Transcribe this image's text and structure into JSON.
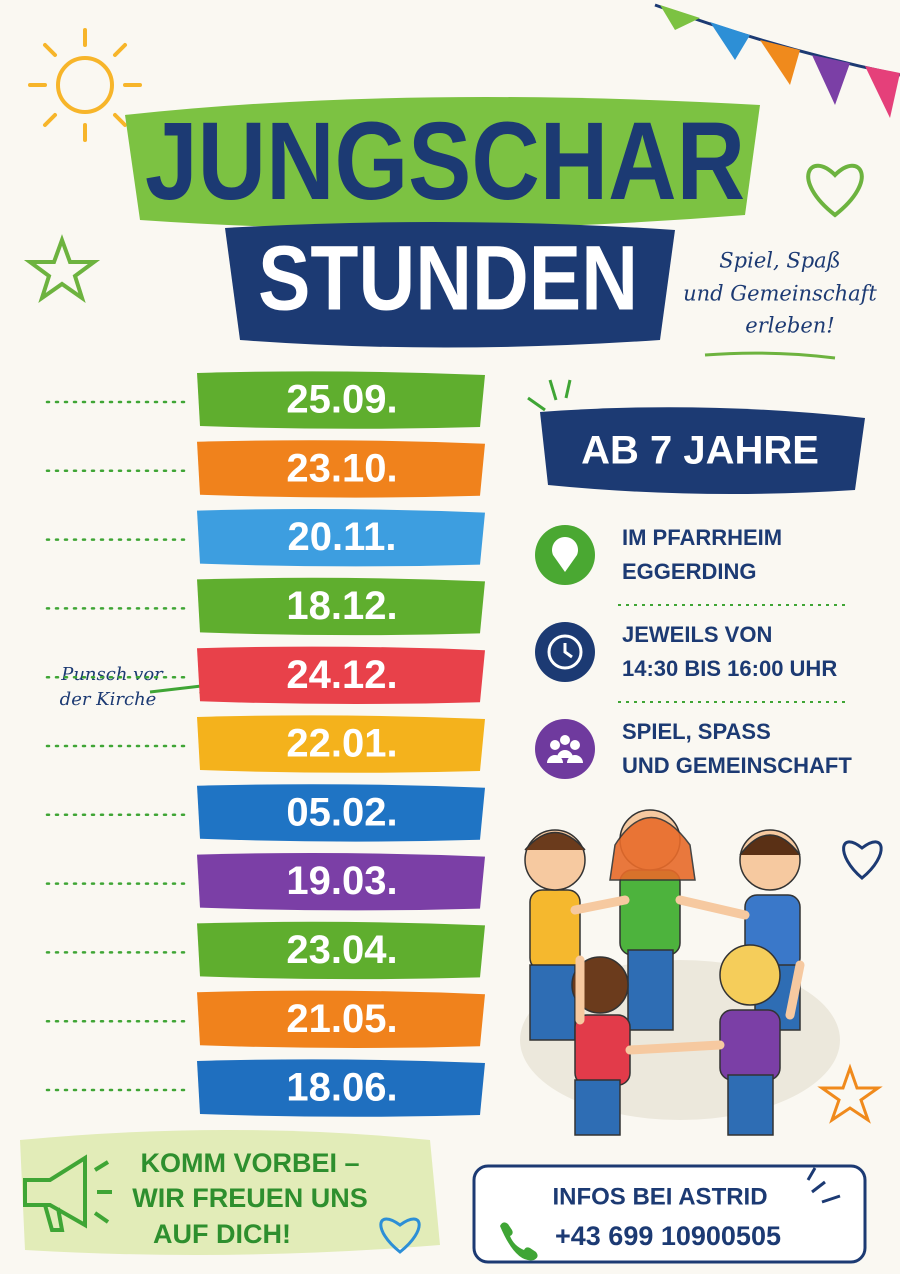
{
  "header": {
    "title_line1": "JUNGSCHAR",
    "title_line2": "STUNDEN",
    "tagline": [
      "Spiel, Spaß",
      "und Gemeinschaft",
      "erleben!"
    ]
  },
  "dates": [
    "25.09.",
    "23.10.",
    "20.11.",
    "18.12.",
    "24.12.",
    "22.01.",
    "05.02.",
    "19.03.",
    "23.04.",
    "21.05.",
    "18.06."
  ],
  "note": [
    "Punsch vor",
    "der Kirche"
  ],
  "age_badge": "AB 7 JAHRE",
  "info": [
    [
      "IM PFARRHEIM",
      "EGGERDING"
    ],
    [
      "JEWEILS VON",
      "14:30 BIS 16:00 UHR"
    ],
    [
      "SPIEL, SPASS",
      "UND GEMEINSCHAFT"
    ]
  ],
  "footer": {
    "message": [
      "KOMM VORBEI –",
      "WIR FREUEN UNS",
      "AUF DICH!"
    ],
    "contact_title": "INFOS BEI ASTRID",
    "phone": "+43 699 10900505"
  }
}
